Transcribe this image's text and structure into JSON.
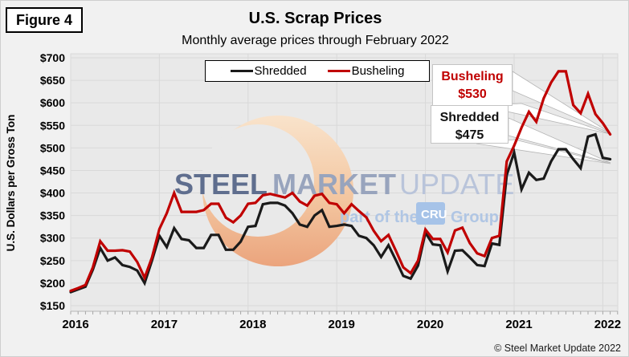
{
  "figure_label": "Figure 4",
  "title": "U.S. Scrap Prices",
  "subtitle": "Monthly average prices through February 2022",
  "copyright": "© Steel Market Update 2022",
  "y_axis": {
    "title": "U.S. Dollars per Gross Ton",
    "ticks": [
      "$700",
      "$650",
      "$600",
      "$550",
      "$500",
      "$450",
      "$400",
      "$350",
      "$300",
      "$250",
      "$200",
      "$150"
    ]
  },
  "x_axis": {
    "years": [
      "2016",
      "2017",
      "2018",
      "2019",
      "2020",
      "2021",
      "2022"
    ]
  },
  "legend": [
    {
      "label": "Shredded",
      "color": "#1a1a1a"
    },
    {
      "label": "Busheling",
      "color": "#c00000"
    }
  ],
  "annotations": [
    {
      "series": "Busheling",
      "label": "Busheling",
      "value": "$530",
      "color": "#c00000"
    },
    {
      "series": "Shredded",
      "label": "Shredded",
      "value": "$475",
      "color": "#111111"
    }
  ],
  "watermark": {
    "steel": "STEEL",
    "market": "MARKET",
    "update": "UPDATE",
    "part_of_the": "part of the",
    "cru": "CRU",
    "group": "Group"
  },
  "chart_data": {
    "type": "line",
    "x_start": "2016-01",
    "x_end": "2022-02",
    "x_tick_years": [
      2016,
      2017,
      2018,
      2019,
      2020,
      2021,
      2022
    ],
    "ylim": [
      150,
      700
    ],
    "y_tick_step": 50,
    "grid": true,
    "legend_position": "top-center",
    "units": "U.S. Dollars per Gross Ton",
    "series": [
      {
        "name": "Shredded",
        "color": "#1a1a1a",
        "values": [
          180,
          186,
          192,
          230,
          278,
          250,
          257,
          240,
          236,
          228,
          200,
          250,
          305,
          280,
          322,
          298,
          295,
          278,
          278,
          307,
          307,
          274,
          274,
          292,
          325,
          327,
          375,
          378,
          378,
          372,
          355,
          330,
          325,
          350,
          362,
          325,
          327,
          330,
          327,
          305,
          300,
          284,
          258,
          284,
          251,
          216,
          210,
          239,
          312,
          286,
          284,
          226,
          272,
          273,
          257,
          240,
          238,
          288,
          285,
          440,
          490,
          408,
          445,
          429,
          432,
          470,
          497,
          497,
          475,
          455,
          525,
          530,
          478,
          475
        ]
      },
      {
        "name": "Busheling",
        "color": "#c00000",
        "values": [
          183,
          189,
          196,
          235,
          293,
          272,
          272,
          273,
          270,
          247,
          212,
          257,
          320,
          355,
          400,
          358,
          358,
          358,
          362,
          376,
          376,
          345,
          335,
          350,
          376,
          378,
          395,
          398,
          394,
          390,
          400,
          381,
          372,
          394,
          398,
          378,
          375,
          355,
          375,
          360,
          346,
          316,
          293,
          307,
          272,
          235,
          222,
          250,
          319,
          298,
          298,
          268,
          317,
          323,
          289,
          266,
          260,
          300,
          305,
          470,
          505,
          545,
          580,
          558,
          610,
          645,
          670,
          670,
          595,
          577,
          620,
          575,
          555,
          530
        ]
      }
    ]
  }
}
